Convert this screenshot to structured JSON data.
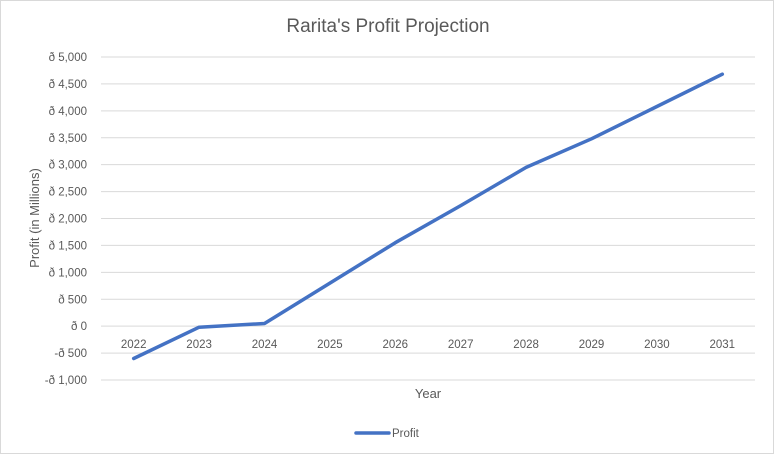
{
  "chart_data": {
    "type": "line",
    "title": "Rarita's Profit Projection",
    "xlabel": "Year",
    "ylabel": "Profit (in Millions)",
    "categories": [
      "2022",
      "2023",
      "2024",
      "2025",
      "2026",
      "2027",
      "2028",
      "2029",
      "2030",
      "2031"
    ],
    "y_tick_values": [
      -1000,
      -500,
      0,
      500,
      1000,
      1500,
      2000,
      2500,
      3000,
      3500,
      4000,
      4500,
      5000
    ],
    "y_tick_labels": [
      "-ð 1,000",
      "-ð 500",
      "ð 0",
      "ð 500",
      "ð 1,000",
      "ð 1,500",
      "ð 2,000",
      "ð 2,500",
      "ð 3,000",
      "ð 3,500",
      "ð 4,000",
      "ð 4,500",
      "ð 5,000"
    ],
    "ylim": [
      -1000,
      5000
    ],
    "grid": true,
    "legend_position": "bottom",
    "series": [
      {
        "name": "Profit",
        "color": "#4472c4",
        "values": [
          -600,
          -20,
          50,
          800,
          1550,
          2240,
          2950,
          3480,
          4080,
          4680
        ]
      }
    ]
  }
}
